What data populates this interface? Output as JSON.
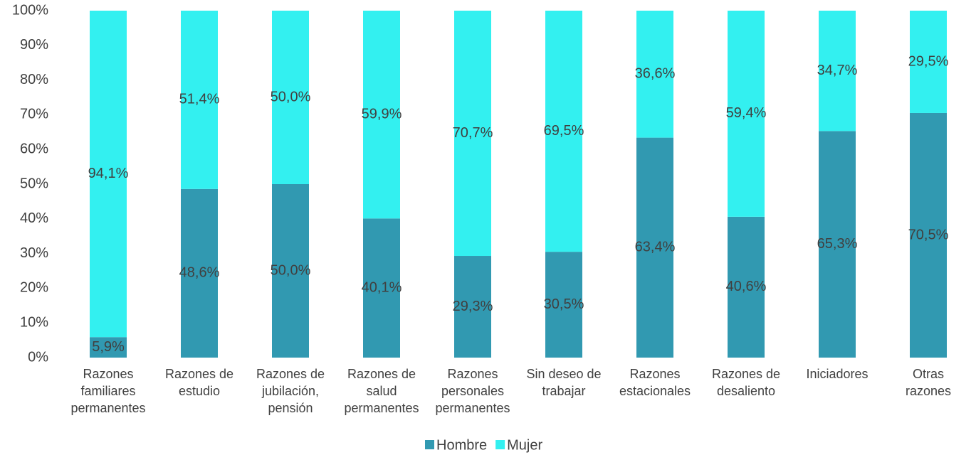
{
  "chart_data": {
    "type": "stacked_bar_100",
    "categories": [
      "Razones\nfamiliares\npermanentes",
      "Razones de\nestudio",
      "Razones de\njubilación,\npensión",
      "Razones de\nsalud\npermanentes",
      "Razones\npersonales\npermanentes",
      "Sin deseo de\ntrabajar",
      "Razones\nestacionales",
      "Razones de\ndesaliento",
      "Iniciadores",
      "Otras\nrazones"
    ],
    "series": [
      {
        "name": "Hombre",
        "color": "#3199b1",
        "values": [
          5.9,
          48.6,
          50.0,
          40.1,
          29.3,
          30.5,
          63.4,
          40.6,
          65.3,
          70.5
        ],
        "value_labels": [
          "5,9%",
          "48,6%",
          "50,0%",
          "40,1%",
          "29,3%",
          "30,5%",
          "63,4%",
          "40,6%",
          "65,3%",
          "70,5%"
        ]
      },
      {
        "name": "Mujer",
        "color": "#33f0f0",
        "values": [
          94.1,
          51.4,
          50.0,
          59.9,
          70.7,
          69.5,
          36.6,
          59.4,
          34.7,
          29.5
        ],
        "value_labels": [
          "94,1%",
          "51,4%",
          "50,0%",
          "59,9%",
          "70,7%",
          "69,5%",
          "36,6%",
          "59,4%",
          "34,7%",
          "29,5%"
        ]
      }
    ],
    "ylim": [
      0,
      100
    ],
    "yticks": [
      {
        "value": 0,
        "label": "0%"
      },
      {
        "value": 10,
        "label": "10%"
      },
      {
        "value": 20,
        "label": "20%"
      },
      {
        "value": 30,
        "label": "30%"
      },
      {
        "value": 40,
        "label": "40%"
      },
      {
        "value": 50,
        "label": "50%"
      },
      {
        "value": 60,
        "label": "60%"
      },
      {
        "value": 70,
        "label": "70%"
      },
      {
        "value": 80,
        "label": "80%"
      },
      {
        "value": 90,
        "label": "90%"
      },
      {
        "value": 100,
        "label": "100%"
      }
    ],
    "grid": false,
    "legend": "bottom"
  }
}
